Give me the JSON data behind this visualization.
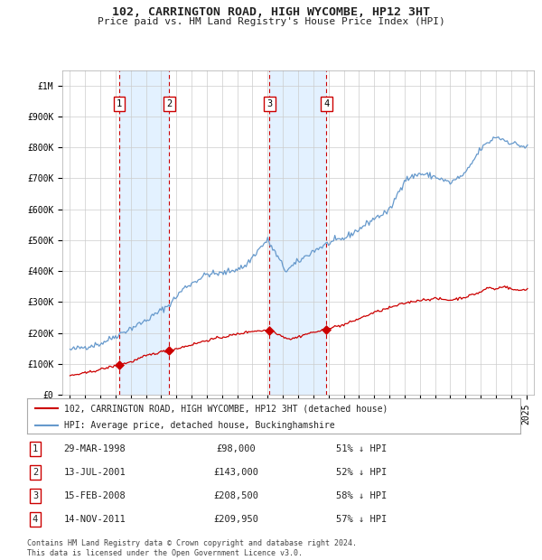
{
  "title": "102, CARRINGTON ROAD, HIGH WYCOMBE, HP12 3HT",
  "subtitle": "Price paid vs. HM Land Registry's House Price Index (HPI)",
  "background_color": "#ffffff",
  "plot_bg_color": "#ffffff",
  "grid_color": "#cccccc",
  "legend_line1": "102, CARRINGTON ROAD, HIGH WYCOMBE, HP12 3HT (detached house)",
  "legend_line2": "HPI: Average price, detached house, Buckinghamshire",
  "footer1": "Contains HM Land Registry data © Crown copyright and database right 2024.",
  "footer2": "This data is licensed under the Open Government Licence v3.0.",
  "sales": [
    {
      "num": 1,
      "price": 98000,
      "label": "29-MAR-1998",
      "pct": "51%",
      "x": 1998.24
    },
    {
      "num": 2,
      "price": 143000,
      "label": "13-JUL-2001",
      "pct": "52%",
      "x": 2001.53
    },
    {
      "num": 3,
      "price": 208500,
      "label": "15-FEB-2008",
      "pct": "58%",
      "x": 2008.12
    },
    {
      "num": 4,
      "price": 209950,
      "label": "14-NOV-2011",
      "pct": "57%",
      "x": 2011.87
    }
  ],
  "hpi_color": "#6699cc",
  "sale_color": "#cc0000",
  "dashed_color": "#cc0000",
  "shade_color": "#ddeeff",
  "ylim": [
    0,
    1050000
  ],
  "yticks": [
    0,
    100000,
    200000,
    300000,
    400000,
    500000,
    600000,
    700000,
    800000,
    900000,
    1000000
  ],
  "ytick_labels": [
    "£0",
    "£100K",
    "£200K",
    "£300K",
    "£400K",
    "£500K",
    "£600K",
    "£700K",
    "£800K",
    "£900K",
    "£1M"
  ],
  "xlim_start": 1994.5,
  "xlim_end": 2025.5
}
